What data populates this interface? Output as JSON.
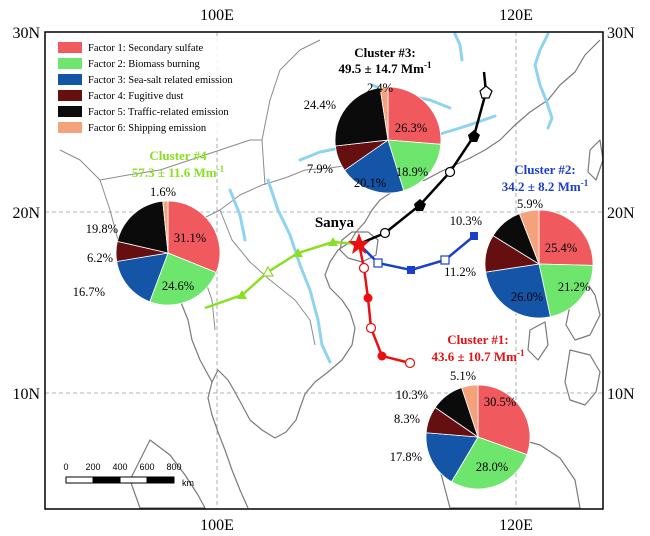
{
  "axes": {
    "lon_ticks": [
      "100E",
      "120E"
    ],
    "lat_ticks": [
      "30N",
      "20N",
      "10N"
    ]
  },
  "legend": [
    {
      "label": "Factor 1: Secondary sulfate",
      "color": "#f05a5f"
    },
    {
      "label": "Factor 2: Biomass burning",
      "color": "#6ee66e"
    },
    {
      "label": "Factor 3: Sea-salt related emission",
      "color": "#1455a8"
    },
    {
      "label": "Factor 4: Fugitive dust",
      "color": "#650f10"
    },
    {
      "label": "Factor 5: Traffic-related emission",
      "color": "#0b0b0b"
    },
    {
      "label": "Factor 6: Shipping emission",
      "color": "#f4a27c"
    }
  ],
  "site": {
    "name": "Sanya"
  },
  "clusters": [
    {
      "id": "c1",
      "title": "Cluster #1:",
      "value": "43.6 ± 10.7 Mm",
      "unit_sup": "-1",
      "color": "#e81010",
      "shares": [
        30.5,
        28.0,
        17.8,
        8.3,
        10.3,
        5.1
      ],
      "labels": [
        "30.5%",
        "28.0%",
        "17.8%",
        "8.3%",
        "10.3%",
        "5.1%"
      ]
    },
    {
      "id": "c2",
      "title": "Cluster #2:",
      "value": "34.2 ± 8.2 Mm",
      "unit_sup": "-1",
      "color": "#1a3fc8",
      "shares": [
        25.4,
        21.2,
        26.0,
        11.2,
        10.3,
        5.9
      ],
      "labels": [
        "25.4%",
        "21.2%",
        "26.0%",
        "11.2%",
        "10.3%",
        "5.9%"
      ]
    },
    {
      "id": "c3",
      "title": "Cluster #3:",
      "value": "49.5 ± 14.7 Mm",
      "unit_sup": "-1",
      "color": "#000000",
      "shares": [
        26.3,
        18.9,
        20.1,
        7.9,
        24.4,
        2.4
      ],
      "labels": [
        "26.3%",
        "18.9%",
        "20.1%",
        "7.9%",
        "24.4%",
        "2.4%"
      ]
    },
    {
      "id": "c4",
      "title": "Cluster #4",
      "value": "57.3 ± 11.6 Mm",
      "unit_sup": "-1",
      "color": "#88e020",
      "shares": [
        31.1,
        24.6,
        16.7,
        6.2,
        19.8,
        1.6
      ],
      "labels": [
        "31.1%",
        "24.6%",
        "16.7%",
        "6.2%",
        "19.8%",
        "1.6%"
      ]
    }
  ],
  "scalebar": {
    "ticks": [
      "0",
      "200",
      "400",
      "600",
      "800"
    ],
    "unit": "km"
  }
}
